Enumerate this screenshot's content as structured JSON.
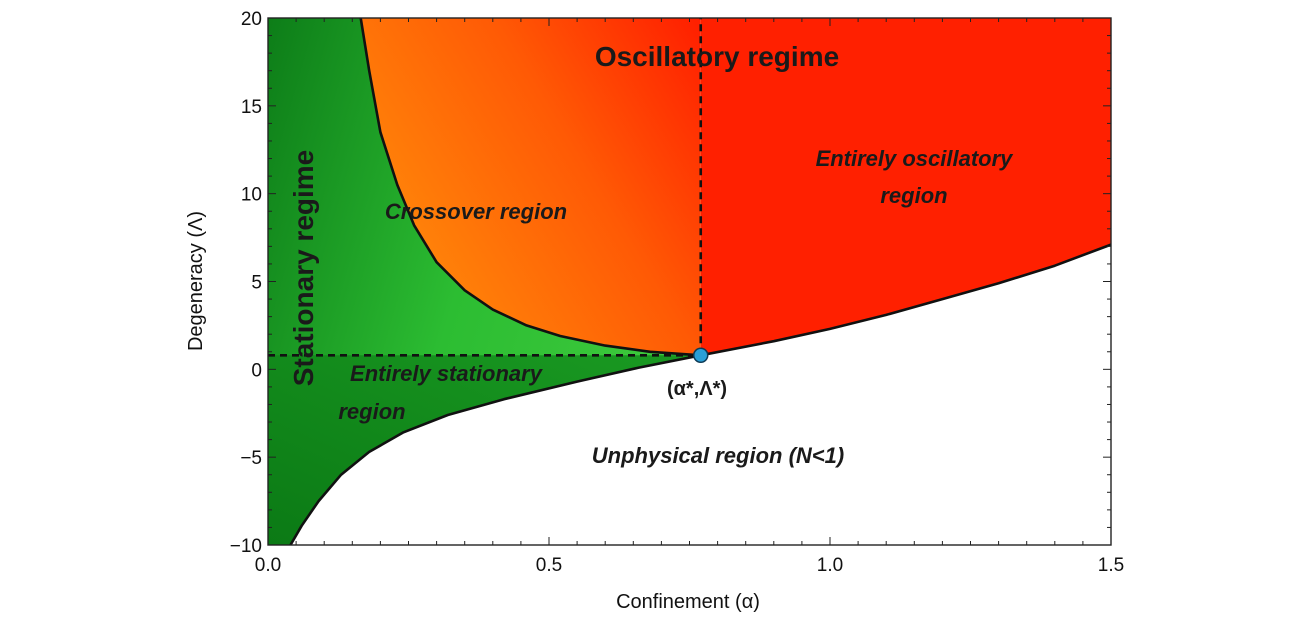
{
  "chart_data": {
    "type": "area",
    "xlabel": "Confinement (α)",
    "ylabel": "Degeneracy (Λ)",
    "xlim": [
      0.0,
      1.5
    ],
    "ylim": [
      -10,
      20
    ],
    "x_ticks": [
      "0.0",
      "0.5",
      "1.0",
      "1.5"
    ],
    "y_ticks": [
      "−10",
      "−5",
      "0",
      "5",
      "10",
      "15",
      "20"
    ],
    "x_tick_values": [
      0.0,
      0.5,
      1.0,
      1.5
    ],
    "y_tick_values": [
      -10,
      -5,
      0,
      5,
      10,
      15,
      20
    ],
    "critical_point": {
      "alpha": 0.77,
      "lambda": 0.8,
      "label": "(α*,Λ*)"
    },
    "curves": {
      "lower_boundary": [
        {
          "x": 0.04,
          "y": -10.0
        },
        {
          "x": 0.06,
          "y": -8.9
        },
        {
          "x": 0.09,
          "y": -7.5
        },
        {
          "x": 0.13,
          "y": -6.0
        },
        {
          "x": 0.18,
          "y": -4.7
        },
        {
          "x": 0.24,
          "y": -3.6
        },
        {
          "x": 0.32,
          "y": -2.6
        },
        {
          "x": 0.42,
          "y": -1.7
        },
        {
          "x": 0.55,
          "y": -0.7
        },
        {
          "x": 0.66,
          "y": 0.1
        },
        {
          "x": 0.77,
          "y": 0.8
        },
        {
          "x": 0.9,
          "y": 1.6
        },
        {
          "x": 1.0,
          "y": 2.3
        },
        {
          "x": 1.1,
          "y": 3.1
        },
        {
          "x": 1.2,
          "y": 4.0
        },
        {
          "x": 1.3,
          "y": 4.9
        },
        {
          "x": 1.4,
          "y": 5.9
        },
        {
          "x": 1.5,
          "y": 7.1
        }
      ],
      "crossover_boundary": [
        {
          "x": 0.165,
          "y": 20.0
        },
        {
          "x": 0.18,
          "y": 17.0
        },
        {
          "x": 0.2,
          "y": 13.5
        },
        {
          "x": 0.23,
          "y": 10.5
        },
        {
          "x": 0.26,
          "y": 8.2
        },
        {
          "x": 0.3,
          "y": 6.1
        },
        {
          "x": 0.35,
          "y": 4.5
        },
        {
          "x": 0.4,
          "y": 3.4
        },
        {
          "x": 0.46,
          "y": 2.5
        },
        {
          "x": 0.52,
          "y": 1.9
        },
        {
          "x": 0.6,
          "y": 1.35
        },
        {
          "x": 0.68,
          "y": 1.0
        },
        {
          "x": 0.77,
          "y": 0.8
        }
      ]
    },
    "reference_lines": [
      {
        "orientation": "horizontal",
        "y": 0.8,
        "x_from": 0.0,
        "x_to": 0.77,
        "style": "dashed"
      },
      {
        "orientation": "vertical",
        "x": 0.77,
        "y_from": 0.8,
        "y_to": 20.0,
        "style": "dashed"
      }
    ],
    "regions": [
      {
        "name": "Stationary regime",
        "color": "#22b52b"
      },
      {
        "name": "Crossover region",
        "color": "#ff7d0a"
      },
      {
        "name": "Entirely oscillatory region",
        "color": "#ff2400"
      },
      {
        "name": "Entirely stationary region",
        "color": "#0e8a1e"
      },
      {
        "name": "Unphysical region (N<1)",
        "color": "#ffffff"
      }
    ],
    "annotations": {
      "oscillatory_regime": "Oscillatory regime",
      "stationary_regime": "Stationary regime",
      "crossover": "Crossover region",
      "entirely_oscillatory_1": "Entirely oscillatory",
      "entirely_oscillatory_2": "region",
      "entirely_stationary_1": "Entirely stationary",
      "entirely_stationary_2": "region",
      "unphysical": "Unphysical region (N<1)"
    },
    "colors": {
      "green_light": "#34c238",
      "green_dark": "#0b8a1a",
      "orange": "#ff7a08",
      "red": "#ff2000",
      "point": "#2a9fd6"
    }
  }
}
